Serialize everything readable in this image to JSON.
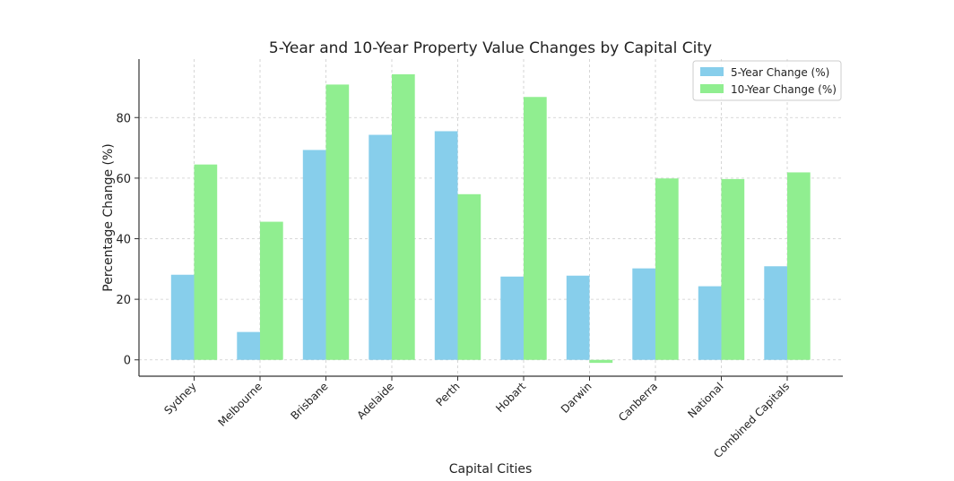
{
  "chart_data": {
    "type": "bar",
    "title": "5-Year and 10-Year Property Value Changes by Capital City",
    "xlabel": "Capital Cities",
    "ylabel": "Percentage Change (%)",
    "categories": [
      "Sydney",
      "Melbourne",
      "Brisbane",
      "Adelaide",
      "Perth",
      "Hobart",
      "Darwin",
      "Canberra",
      "National",
      "Combined Capitals"
    ],
    "series": [
      {
        "name": "5-Year Change (%)",
        "color": "#87ceeb",
        "values": [
          28.1,
          9.2,
          69.3,
          74.3,
          75.5,
          27.5,
          27.8,
          30.2,
          24.3,
          30.9
        ]
      },
      {
        "name": "10-Year Change (%)",
        "color": "#90ee90",
        "values": [
          64.5,
          45.6,
          90.9,
          94.3,
          54.7,
          86.8,
          -1.0,
          59.9,
          59.7,
          61.9
        ]
      }
    ],
    "ylim": [
      -5.4,
      99.3
    ],
    "yticks": [
      0,
      20,
      40,
      60,
      80
    ],
    "grid": true,
    "legend_position": "top-right"
  }
}
